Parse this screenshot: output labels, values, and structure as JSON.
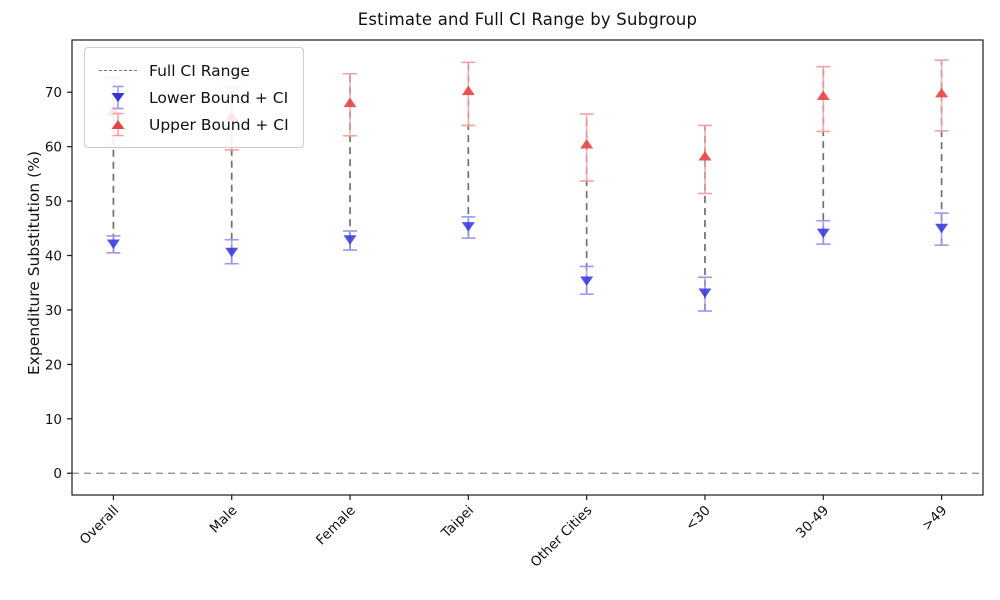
{
  "title": "Estimate and Full CI Range by Subgroup",
  "ylabel": "Expenditure Substitution (%)",
  "legend": {
    "full_ci": "Full CI Range",
    "lower": "Lower Bound + CI",
    "upper": "Upper Bound + CI"
  },
  "chart_data": {
    "type": "scatter",
    "title": "Estimate and Full CI Range by Subgroup",
    "xlabel": "",
    "ylabel": "Expenditure Substitution (%)",
    "categories": [
      "Overall",
      "Male",
      "Female",
      "Taipei",
      "Other Cities",
      "<30",
      "30-49",
      ">49"
    ],
    "yticks": [
      0,
      10,
      20,
      30,
      40,
      50,
      60,
      70
    ],
    "ylim": [
      -4,
      79.6
    ],
    "grid": false,
    "legend_position": "upper left",
    "zero_reference_line": 0,
    "series": [
      {
        "name": "Lower Bound + CI",
        "marker": "triangle-down",
        "values": [
          42.2,
          40.7,
          43.0,
          45.4,
          35.4,
          33.2,
          44.2,
          45.1
        ],
        "ci_low": [
          40.5,
          38.5,
          41.0,
          43.2,
          32.9,
          29.8,
          42.1,
          41.9
        ],
        "ci_high": [
          43.6,
          42.9,
          44.5,
          47.1,
          38.0,
          36.0,
          46.4,
          47.8
        ]
      },
      {
        "name": "Upper Bound + CI",
        "marker": "triangle-up",
        "values": [
          66.5,
          65.5,
          68.0,
          70.2,
          60.4,
          58.2,
          69.3,
          69.8
        ],
        "ci_low": [
          60.0,
          59.4,
          62.0,
          63.9,
          53.7,
          51.4,
          62.8,
          62.9
        ],
        "ci_high": [
          72.7,
          71.0,
          73.4,
          75.5,
          66.0,
          63.9,
          74.7,
          75.9
        ]
      }
    ],
    "full_ci_range": {
      "name": "Full CI Range",
      "style": "dashed",
      "spans": [
        [
          40.5,
          72.7
        ],
        [
          38.5,
          71.0
        ],
        [
          41.0,
          73.4
        ],
        [
          43.2,
          75.5
        ],
        [
          32.9,
          66.0
        ],
        [
          29.8,
          63.9
        ],
        [
          42.1,
          74.7
        ],
        [
          41.9,
          75.9
        ]
      ]
    },
    "colors": {
      "lower_marker": "#3434db",
      "lower_ci": "#9a9aec",
      "upper_marker": "#e64545",
      "upper_ci": "#f2a2a2",
      "range_line": "#707070",
      "zero_line": "#8a8a8a",
      "spine": "#1a1a1a",
      "text": "#111111"
    }
  }
}
